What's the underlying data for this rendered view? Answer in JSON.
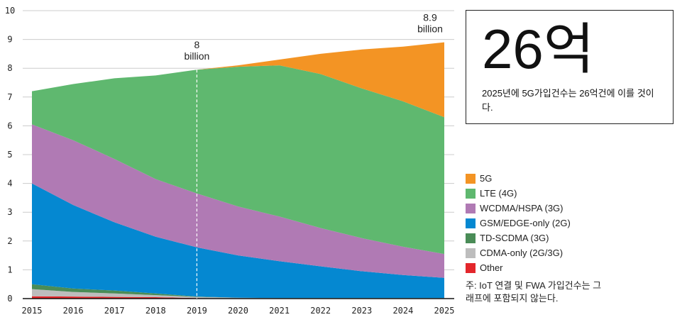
{
  "chart_data": {
    "type": "area",
    "stacked": true,
    "x": [
      2015,
      2016,
      2017,
      2018,
      2019,
      2020,
      2021,
      2022,
      2023,
      2024,
      2025
    ],
    "ylim": [
      0,
      10
    ],
    "yticks": [
      0,
      1,
      2,
      3,
      4,
      5,
      6,
      7,
      8,
      9,
      10
    ],
    "grid": true,
    "series": [
      {
        "name": "Other",
        "color": "#e3262b",
        "values": [
          0.08,
          0.07,
          0.06,
          0.05,
          0.02,
          0.01,
          0.01,
          0.01,
          0.01,
          0.01,
          0.01
        ]
      },
      {
        "name": "CDMA-only (2G/3G)",
        "color": "#bdbdbd",
        "values": [
          0.25,
          0.16,
          0.12,
          0.07,
          0.04,
          0.02,
          0.01,
          0.01,
          0.01,
          0.01,
          0.01
        ]
      },
      {
        "name": "TD-SCDMA (3G)",
        "color": "#4a8c57",
        "values": [
          0.17,
          0.12,
          0.1,
          0.06,
          0.01,
          0,
          0,
          0,
          0,
          0,
          0
        ]
      },
      {
        "name": "GSM/EDGE-only (2G)",
        "color": "#0588d1",
        "values": [
          3.5,
          2.9,
          2.37,
          1.97,
          1.71,
          1.47,
          1.28,
          1.1,
          0.93,
          0.8,
          0.7
        ]
      },
      {
        "name": "WCDMA/HSPA (3G)",
        "color": "#b07ab4",
        "values": [
          2.05,
          2.25,
          2.2,
          2.0,
          1.87,
          1.7,
          1.55,
          1.33,
          1.15,
          0.98,
          0.83
        ]
      },
      {
        "name": "LTE (4G)",
        "color": "#5fb86f",
        "values": [
          1.15,
          1.95,
          2.8,
          3.6,
          4.3,
          4.85,
          5.25,
          5.35,
          5.2,
          5.05,
          4.75
        ]
      },
      {
        "name": "5G",
        "color": "#f39424",
        "values": [
          0,
          0,
          0,
          0,
          0,
          0.05,
          0.2,
          0.7,
          1.35,
          1.9,
          2.6
        ]
      }
    ],
    "annotations": [
      {
        "x": 2019,
        "lines": [
          "8",
          "billion"
        ],
        "dashed_line": true
      },
      {
        "x": 2025,
        "lines": [
          "8.9",
          "billion"
        ]
      }
    ]
  },
  "callout": {
    "big": "26억",
    "text": "2025년에 5G가입건수는 26억건에 이를 것이다."
  },
  "legend": [
    "5G",
    "LTE (4G)",
    "WCDMA/HSPA (3G)",
    "GSM/EDGE-only (2G)",
    "TD-SCDMA (3G)",
    "CDMA-only (2G/3G)",
    "Other"
  ],
  "note": "주: IoT 연결 및 FWA 가입건수는 그래프에 포함되지 않는다."
}
